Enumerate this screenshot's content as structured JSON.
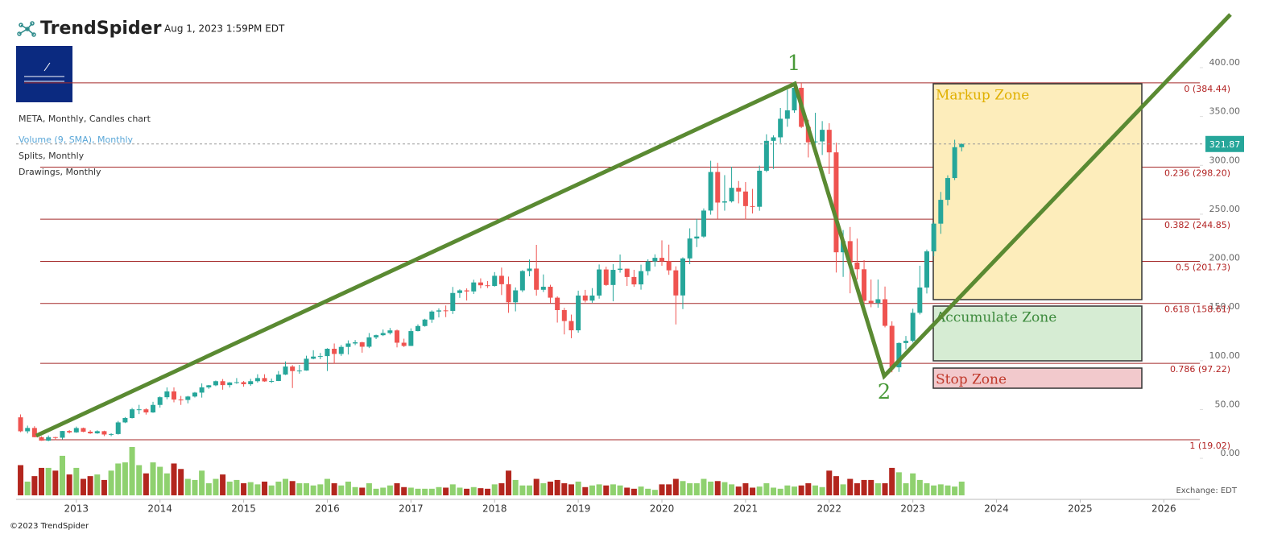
{
  "header": {
    "brand": "TrendSpider",
    "timestamp": "Aug 1, 2023 1:59PM EDT"
  },
  "legend_lines": [
    "META, Monthly, Candles chart",
    "Volume (9, SMA), Monthly",
    "Splits, Monthly",
    "Drawings, Monthly"
  ],
  "chart_data": {
    "type": "candlestick",
    "open": [
      42,
      27.7,
      31.1,
      21.7,
      18.1,
      21.7,
      21.1,
      28.0,
      26.6,
      31.0,
      27.3,
      25.6,
      27.8,
      24.4,
      24.9,
      36.8,
      41.3,
      50.2,
      50.2,
      47.0,
      54.7,
      62.6,
      68.5,
      60.2,
      59.8,
      63.3,
      67.3,
      72.7,
      74.8,
      79.0,
      75.0,
      77.7,
      78.0,
      75.9,
      79.0,
      82.2,
      78.8,
      79.2,
      85.8,
      94.0,
      89.4,
      89.9,
      102.0,
      104.2,
      104.7,
      112.2,
      106.9,
      114.1,
      117.6,
      118.8,
      114.3,
      123.9,
      126.1,
      128.3,
      131.0,
      118.4,
      115.1,
      130.3,
      135.5,
      142.1,
      150.3,
      151.5,
      151.0,
      169.3,
      172.0,
      170.9,
      180.1,
      177.2,
      176.5,
      186.9,
      178.3,
      159.8,
      172.0,
      191.8,
      194.3,
      172.6,
      175.7,
      164.5,
      151.8,
      140.6,
      131.1,
      166.7,
      161.5,
      166.7,
      193.4,
      177.5,
      193.0,
      194.2,
      185.7,
      178.1,
      191.7,
      201.6,
      205.3,
      201.9,
      192.5,
      166.8,
      204.7,
      225.1,
      227.1,
      253.7,
      293.2,
      261.9,
      263.1,
      277.0,
      273.2,
      258.3,
      257.6,
      294.5,
      325.1,
      328.7,
      347.7,
      356.3,
      379.4,
      339.4,
      323.6,
      324.5,
      336.4,
      313.3,
      211.0,
      222.4,
      200.5,
      193.6,
      161.3,
      159.1,
      162.9,
      135.7,
      93.2,
      118.1,
      120.3,
      149.0,
      174.9,
      211.9,
      240.3,
      264.7,
      287.0,
      318.6
    ],
    "high": [
      45,
      33.5,
      32.9,
      22.5,
      23.4,
      22,
      28.1,
      28.9,
      32.5,
      31.5,
      28.8,
      28.7,
      28.3,
      25.7,
      38.3,
      42.3,
      51.6,
      54.8,
      51.3,
      57.9,
      63.4,
      72.6,
      72.6,
      63.9,
      64.0,
      68.0,
      76.7,
      75.1,
      79.7,
      81.2,
      78.1,
      82.2,
      79.2,
      81.4,
      86.1,
      86.1,
      81.7,
      89.4,
      99.2,
      95.5,
      95.7,
      105.1,
      110.7,
      107.9,
      112.8,
      117.6,
      116.0,
      120.8,
      121.1,
      119.4,
      128.3,
      126.7,
      131.9,
      133.5,
      131.9,
      122.5,
      133.1,
      137.2,
      142.9,
      151.5,
      153.6,
      156.5,
      175.5,
      173.1,
      174.0,
      182.9,
      184.3,
      181.5,
      190.7,
      195.3,
      186.1,
      175.0,
      192.7,
      203.6,
      218.6,
      188.3,
      177.7,
      165.9,
      154.1,
      147.2,
      171.7,
      172.5,
      174.3,
      198.5,
      196.2,
      198.9,
      208.7,
      194.3,
      193.0,
      198.3,
      203.8,
      208.9,
      223.2,
      218.8,
      196.6,
      205.8,
      235.5,
      245.2,
      255.9,
      304.7,
      302.6,
      290.0,
      298.6,
      284.0,
      282.9,
      275.9,
      299.7,
      331.8,
      330.7,
      358.8,
      377.6,
      384.3,
      384.3,
      346.7,
      353.8,
      345.3,
      343.1,
      323.2,
      233.8,
      236.9,
      225.0,
      203.0,
      183.1,
      183.1,
      175.9,
      140.3,
      118.7,
      125.3,
      153.2,
      197.2,
      213.8,
      241.7,
      272.8,
      289.8,
      326.2,
      322.5
    ],
    "low": [
      26.8,
      25.5,
      21.6,
      18,
      17.6,
      18.8,
      19.3,
      25.5,
      26.1,
      26.8,
      25,
      25.1,
      22.8,
      22.7,
      24.3,
      36.1,
      40.8,
      45.3,
      44.8,
      46.6,
      51.9,
      60.5,
      57.4,
      54.7,
      56.3,
      62.3,
      62.2,
      71.2,
      73.9,
      70.3,
      72.5,
      76.3,
      73.4,
      74.3,
      77.5,
      78.4,
      77.2,
      79.1,
      85.3,
      72,
      86.7,
      89.7,
      101.4,
      101.5,
      89.4,
      96.8,
      104.9,
      106.3,
      115.9,
      108.2,
      112.9,
      122.1,
      125.2,
      126.8,
      113.6,
      114.0,
      115.0,
      130.0,
      134.8,
      138.8,
      144.3,
      144.6,
      147.8,
      164.3,
      161.6,
      168.3,
      174.0,
      174.4,
      175.8,
      167.2,
      149.0,
      150.5,
      170.2,
      186.4,
      166.6,
      170.3,
      158.9,
      139.0,
      126.9,
      123.0,
      128.6,
      159.6,
      159.3,
      163.5,
      176.6,
      160.8,
      190.1,
      176.5,
      175.6,
      172.7,
      187.4,
      196.4,
      197.2,
      187.9,
      137.1,
      152.8,
      198.8,
      216.3,
      225.8,
      249.5,
      245.3,
      253.6,
      261.9,
      261.1,
      244.6,
      250.7,
      253.5,
      293,
      296.3,
      322.7,
      339.5,
      353.8,
      338.1,
      308.1,
      317,
      310.6,
      291.2,
      190.2,
      185.8,
      169.0,
      183.1,
      154.3,
      154.7,
      154.2,
      134.1,
      88.1,
      88.5,
      111.6,
      118.6,
      147.3,
      168.8,
      207.1,
      229.9,
      258.9,
      284.9,
      314.3
    ],
    "close": [
      27.7,
      31.1,
      21.7,
      18.1,
      21.7,
      21.1,
      28.0,
      26.6,
      31.0,
      27.3,
      25.6,
      27.8,
      24.4,
      24.9,
      36.8,
      41.3,
      50.2,
      50.2,
      47.0,
      54.7,
      62.6,
      68.5,
      60.2,
      59.8,
      63.3,
      67.3,
      72.7,
      74.8,
      79.0,
      75.0,
      77.7,
      78.0,
      75.9,
      79.0,
      82.2,
      78.8,
      79.2,
      85.8,
      94.0,
      89.4,
      89.9,
      102.0,
      104.2,
      104.7,
      112.2,
      106.9,
      114.1,
      117.6,
      118.8,
      114.3,
      123.9,
      126.1,
      128.3,
      131.0,
      118.4,
      115.1,
      130.3,
      135.5,
      142.1,
      150.3,
      151.5,
      151.0,
      169.3,
      172.0,
      170.9,
      180.1,
      177.2,
      176.5,
      186.9,
      178.3,
      159.8,
      172.0,
      191.8,
      194.3,
      172.6,
      175.7,
      164.5,
      151.8,
      140.6,
      131.1,
      166.7,
      161.5,
      166.7,
      193.4,
      177.5,
      193.0,
      194.2,
      185.7,
      178.1,
      191.7,
      201.6,
      205.3,
      201.9,
      192.5,
      166.8,
      204.7,
      225.1,
      227.1,
      253.7,
      293.2,
      261.9,
      263.1,
      277.0,
      273.2,
      258.3,
      257.6,
      294.5,
      325.1,
      328.7,
      347.7,
      356.3,
      379.4,
      339.4,
      323.6,
      324.5,
      336.4,
      313.3,
      211.0,
      222.4,
      200.5,
      193.6,
      161.3,
      159.1,
      162.9,
      135.7,
      93.2,
      118.1,
      120.3,
      149.0,
      174.9,
      211.9,
      240.3,
      264.7,
      287.0,
      318.6,
      321.87
    ],
    "volume": [
      1100,
      500,
      700,
      1000,
      1000,
      900,
      1440,
      760,
      1000,
      600,
      700,
      760,
      560,
      900,
      1160,
      1200,
      1760,
      1100,
      800,
      1200,
      1040,
      800,
      1160,
      960,
      600,
      560,
      900,
      440,
      600,
      760,
      500,
      560,
      440,
      480,
      400,
      500,
      360,
      500,
      600,
      520,
      440,
      440,
      360,
      400,
      600,
      440,
      360,
      500,
      300,
      280,
      440,
      240,
      280,
      360,
      440,
      300,
      280,
      240,
      240,
      240,
      300,
      280,
      400,
      280,
      240,
      300,
      260,
      240,
      400,
      440,
      900,
      560,
      360,
      360,
      600,
      440,
      500,
      560,
      440,
      400,
      500,
      300,
      360,
      400,
      360,
      400,
      360,
      280,
      240,
      320,
      240,
      200,
      400,
      400,
      600,
      520,
      440,
      440,
      600,
      500,
      520,
      480,
      400,
      320,
      440,
      280,
      320,
      440,
      280,
      240,
      360,
      320,
      360,
      440,
      360,
      300,
      900,
      700,
      400,
      600,
      440,
      560,
      560,
      440,
      440,
      1000,
      840,
      440,
      800,
      560,
      440,
      360,
      400,
      360,
      320,
      500
    ],
    "up_color": "#26a69a",
    "down_color": "#ef5350",
    "volume_up_color": "#8fd16f",
    "volume_down_color": "#b3261e",
    "ylim": [
      -42,
      452.8
    ],
    "yticks": [
      {
        "value": 0,
        "label": "0.00"
      },
      {
        "value": 50,
        "label": "50.00"
      },
      {
        "value": 100,
        "label": "100.00"
      },
      {
        "value": 150,
        "label": "150.00"
      },
      {
        "value": 200,
        "label": "200.00"
      },
      {
        "value": 250,
        "label": "250.00"
      },
      {
        "value": 300,
        "label": "300.00"
      },
      {
        "value": 350,
        "label": "350.00"
      },
      {
        "value": 400,
        "label": "400.00"
      }
    ],
    "xlim": [
      2012.28,
      2026.43
    ],
    "xticks": [
      2013,
      2014,
      2015,
      2016,
      2017,
      2018,
      2019,
      2020,
      2021,
      2022,
      2023,
      2024,
      2025,
      2026
    ],
    "fib_levels": [
      {
        "value": 384.44,
        "label": "0 (384.44)"
      },
      {
        "value": 298.2,
        "label": "0.236 (298.20)"
      },
      {
        "value": 244.85,
        "label": "0.382 (244.85)"
      },
      {
        "value": 201.73,
        "label": "0.5 (201.73)"
      },
      {
        "value": 158.61,
        "label": "0.618 (158.61)"
      },
      {
        "value": 97.22,
        "label": "0.786 (97.22)"
      },
      {
        "value": 19.02,
        "label": "1 (19.02)"
      }
    ],
    "zones": [
      "Markup Zone",
      "Accumulate Zone",
      "Stop Zone"
    ],
    "wave_labels": [
      "1",
      "2"
    ]
  },
  "footer": {
    "copyright": "©2023 TrendSpider",
    "exchange": "Exchange: EDT"
  }
}
